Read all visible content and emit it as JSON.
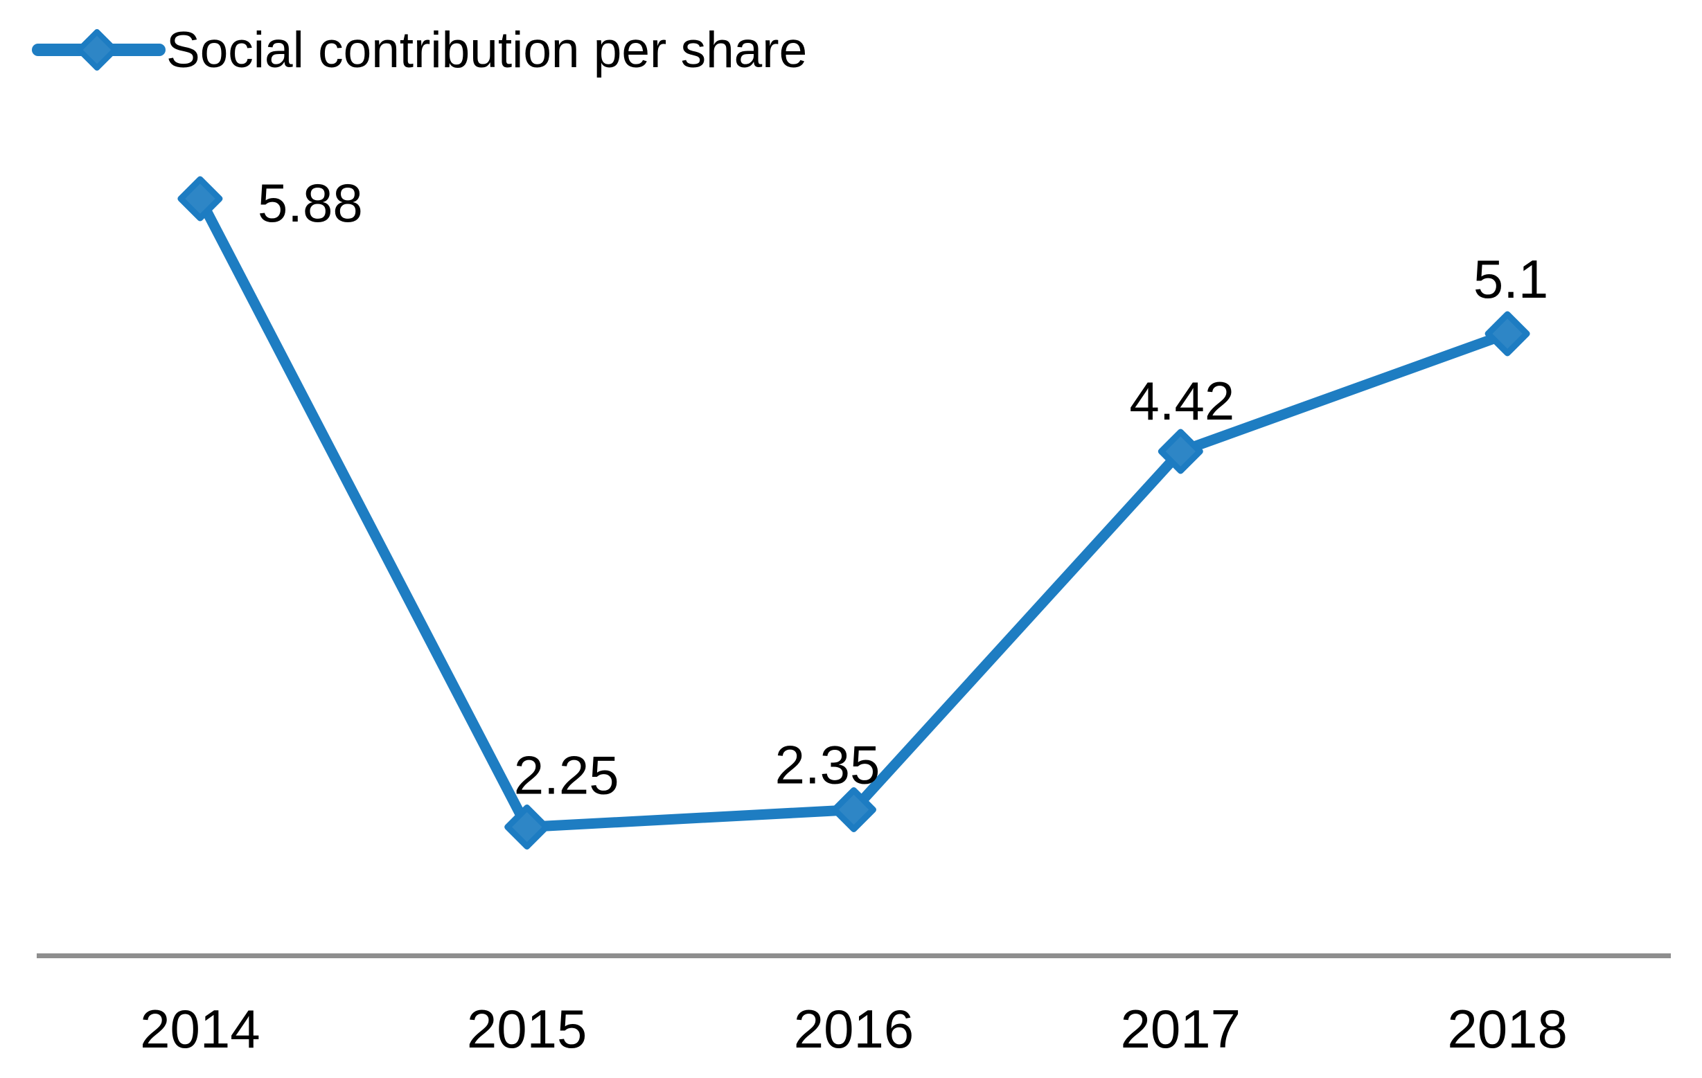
{
  "legend": {
    "label": "Social contribution per share"
  },
  "chart_data": {
    "type": "line",
    "title": "",
    "xlabel": "",
    "ylabel": "",
    "categories": [
      "2014",
      "2015",
      "2016",
      "2017",
      "2018"
    ],
    "series": [
      {
        "name": "Social contribution per share",
        "values": [
          5.88,
          2.25,
          2.35,
          4.42,
          5.1
        ]
      }
    ],
    "point_labels": [
      "5.88",
      "2.25",
      "2.35",
      "4.42",
      "5.1"
    ],
    "ylim_implied": [
      1.5,
      6.6
    ],
    "grid": false,
    "y_axis_visible": false,
    "x_axis_visible": true,
    "legend_position": "top-left",
    "marker_shape": "diamond",
    "colors": {
      "line": "#1e7dc2",
      "marker_fill": "#2e86c6",
      "marker_stroke": "#1d7cc2",
      "axis_line": "#8e8e8e",
      "text": "#000000",
      "background": "#ffffff"
    }
  }
}
